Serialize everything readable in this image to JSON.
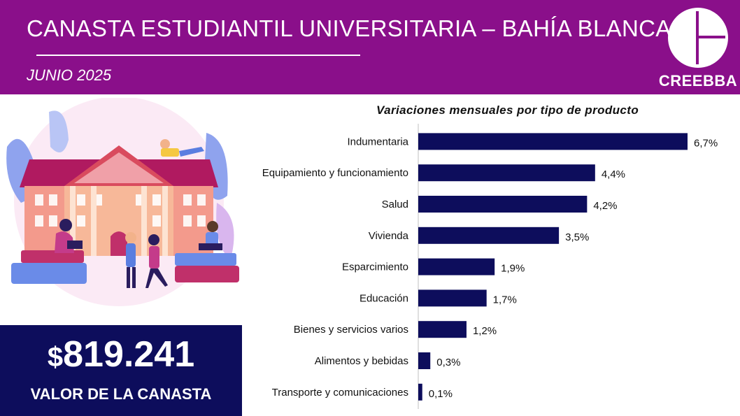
{
  "header": {
    "title": "CANASTA ESTUDIANTIL UNIVERSITARIA – BAHÍA BLANCA",
    "subtitle": "JUNIO 2025",
    "brand": "CREEBBA"
  },
  "summary": {
    "currency": "$",
    "amount": "819.241",
    "label": "VALOR DE LA CANASTA"
  },
  "colors": {
    "header": "#8a0f8a",
    "bar": "#0d0d5c",
    "value_box": "#0d0d5c"
  },
  "chart_data": {
    "type": "bar",
    "orientation": "horizontal",
    "title": "Variaciones mensuales por tipo de producto",
    "categories": [
      "Indumentaria",
      "Equipamiento y funcionamiento",
      "Salud",
      "Vivienda",
      "Esparcimiento",
      "Educación",
      "Bienes y servicios varios",
      "Alimentos y bebidas",
      "Transporte y comunicaciones"
    ],
    "values": [
      6.7,
      4.4,
      4.2,
      3.5,
      1.9,
      1.7,
      1.2,
      0.3,
      0.1
    ],
    "labels": [
      "6,7%",
      "4,4%",
      "4,2%",
      "3,5%",
      "1,9%",
      "1,7%",
      "1,2%",
      "0,3%",
      "0,1%"
    ],
    "unit": "%",
    "xlim": [
      0,
      6.7
    ],
    "xlabel": "",
    "ylabel": ""
  }
}
